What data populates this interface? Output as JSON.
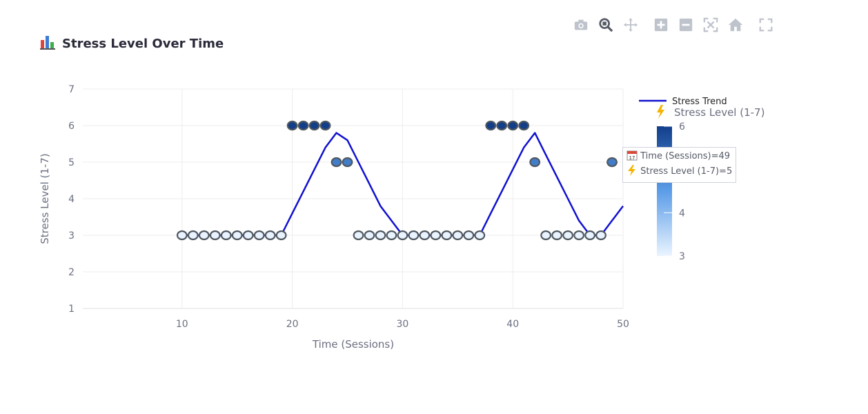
{
  "title": {
    "icon": "bar-chart-icon",
    "text": "Stress Level Over Time"
  },
  "modebar": {
    "buttons": [
      {
        "name": "camera-icon"
      },
      {
        "name": "zoom-icon"
      },
      {
        "name": "pan-icon"
      },
      {
        "name": "zoom-in-icon"
      },
      {
        "name": "zoom-out-icon"
      },
      {
        "name": "autoscale-icon"
      },
      {
        "name": "home-icon"
      },
      {
        "name": "fullscreen-icon"
      }
    ]
  },
  "tooltip": {
    "line1_icon": "calendar-icon",
    "line1": "Time (Sessions)=49",
    "line2_icon": "lightning-icon",
    "line2": "Stress Level (1-7)=5"
  },
  "chart_data": {
    "type": "scatter",
    "xlabel": "Time (Sessions)",
    "ylabel": "Stress Level (1-7)",
    "xlim": [
      1,
      50
    ],
    "ylim": [
      1,
      7
    ],
    "xticks": [
      10,
      20,
      30,
      40,
      50
    ],
    "yticks": [
      1,
      2,
      3,
      4,
      5,
      6,
      7
    ],
    "grid": true,
    "points": {
      "x": [
        10,
        11,
        12,
        13,
        14,
        15,
        16,
        17,
        18,
        19,
        20,
        21,
        22,
        23,
        24,
        25,
        26,
        27,
        28,
        29,
        30,
        31,
        32,
        33,
        34,
        35,
        36,
        37,
        38,
        39,
        40,
        41,
        42,
        43,
        44,
        45,
        46,
        47,
        48,
        49
      ],
      "y": [
        3,
        3,
        3,
        3,
        3,
        3,
        3,
        3,
        3,
        3,
        6,
        6,
        6,
        6,
        5,
        5,
        3,
        3,
        3,
        3,
        3,
        3,
        3,
        3,
        3,
        3,
        3,
        3,
        6,
        6,
        6,
        6,
        5,
        3,
        3,
        3,
        3,
        3,
        3,
        5
      ]
    },
    "trend": {
      "name": "Stress Trend",
      "color": "#1010d0",
      "x": [
        10,
        19,
        20,
        21,
        22,
        23,
        24,
        25,
        26,
        27,
        28,
        29,
        30,
        31,
        32,
        33,
        34,
        35,
        36,
        37,
        38,
        39,
        40,
        41,
        42,
        43,
        44,
        45,
        46,
        47,
        48,
        49,
        50
      ],
      "y": [
        3,
        3,
        3.6,
        4.2,
        4.8,
        5.4,
        5.8,
        5.6,
        5.0,
        4.4,
        3.8,
        3.4,
        3.0,
        3.0,
        3.0,
        3.0,
        3.0,
        3.0,
        3.0,
        3.0,
        3.6,
        4.2,
        4.8,
        5.4,
        5.8,
        5.2,
        4.6,
        4.0,
        3.4,
        3.0,
        3.0,
        3.4,
        3.8
      ]
    },
    "legend": {
      "placement": "top-right",
      "entries": [
        "Stress Trend"
      ]
    },
    "colorbar": {
      "title": "Stress Level (1-7)",
      "title_icon": "lightning-icon",
      "range": [
        3,
        6
      ],
      "ticks": [
        6,
        4,
        3
      ],
      "colorscale": [
        "#e8f3ff",
        "#5a9ce8",
        "#123e8a"
      ]
    },
    "marker": {
      "outline": "#505860"
    }
  }
}
